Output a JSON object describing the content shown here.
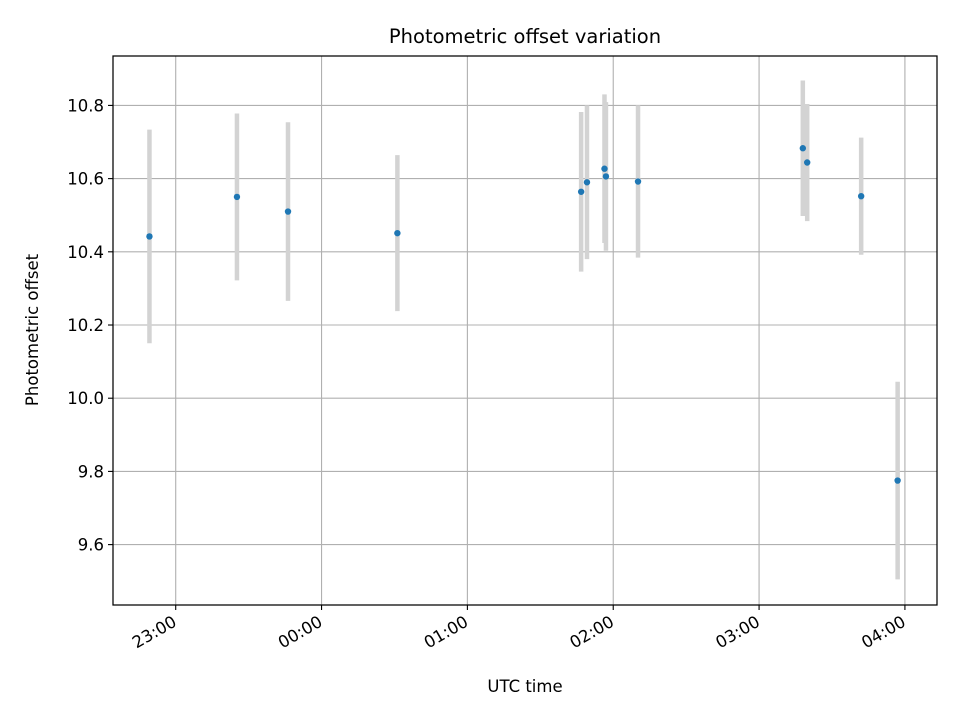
{
  "chart_data": {
    "type": "scatter",
    "title": "Photometric offset variation",
    "xlabel": "UTC time",
    "ylabel": "Photometric offset",
    "x_tick_labels": [
      "23:00",
      "00:00",
      "01:00",
      "02:00",
      "03:00",
      "04:00"
    ],
    "x_tick_values_hours": [
      23,
      24,
      25,
      26,
      27,
      28
    ],
    "y_ticks": [
      9.6,
      9.8,
      10.0,
      10.2,
      10.4,
      10.6,
      10.8
    ],
    "xlim_hours": [
      22.57,
      28.22
    ],
    "ylim": [
      9.435,
      10.935
    ],
    "grid": true,
    "colors": {
      "point": "#1f77b4",
      "errorbar": "#d3d3d3"
    },
    "points": [
      {
        "t": 22.82,
        "y": 10.442,
        "err": 0.292
      },
      {
        "t": 23.42,
        "y": 10.55,
        "err": 0.228
      },
      {
        "t": 23.77,
        "y": 10.51,
        "err": 0.244
      },
      {
        "t": 24.52,
        "y": 10.451,
        "err": 0.213
      },
      {
        "t": 25.78,
        "y": 10.564,
        "err": 0.218
      },
      {
        "t": 25.82,
        "y": 10.59,
        "err": 0.21
      },
      {
        "t": 25.94,
        "y": 10.627,
        "err": 0.203
      },
      {
        "t": 25.95,
        "y": 10.606,
        "err": 0.203
      },
      {
        "t": 26.17,
        "y": 10.592,
        "err": 0.208
      },
      {
        "t": 27.3,
        "y": 10.683,
        "err": 0.185
      },
      {
        "t": 27.33,
        "y": 10.644,
        "err": 0.16
      },
      {
        "t": 27.7,
        "y": 10.552,
        "err": 0.16
      },
      {
        "t": 27.95,
        "y": 9.775,
        "err": 0.27
      }
    ]
  }
}
